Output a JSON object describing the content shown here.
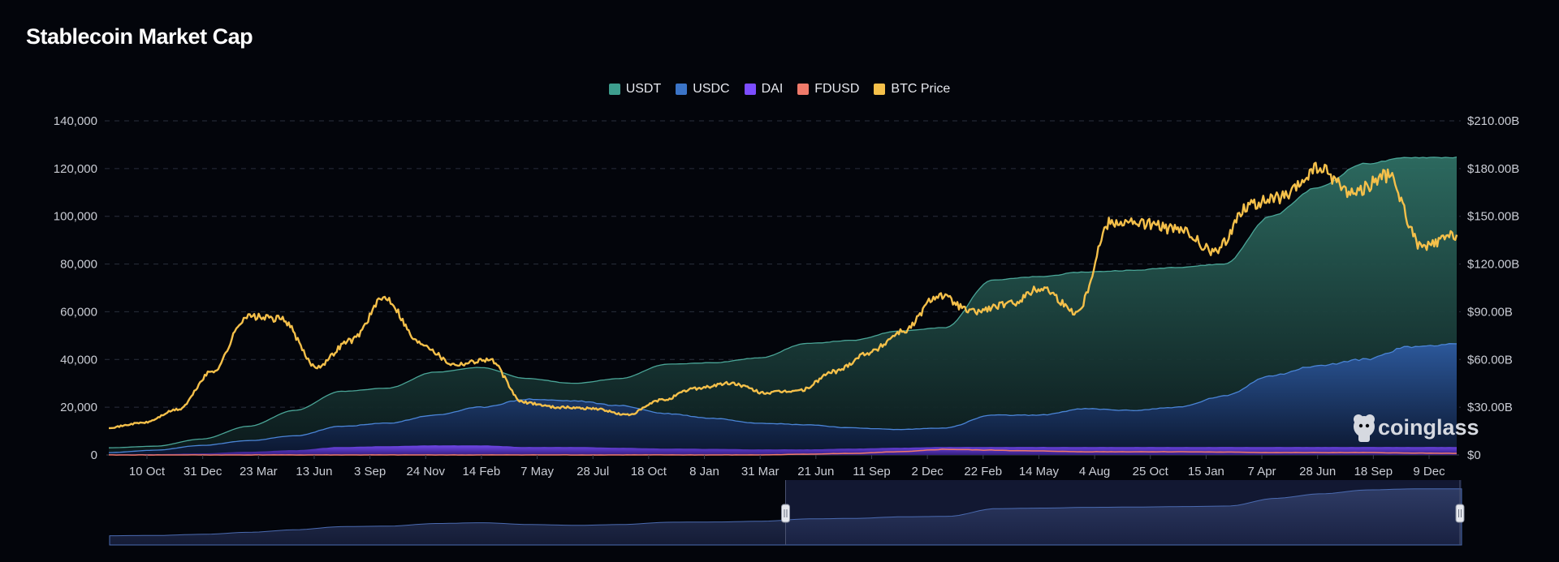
{
  "chart_data": {
    "type": "area",
    "title": "Stablecoin Market Cap",
    "x_ticks": [
      "10 Oct",
      "31 Dec",
      "23 Mar",
      "13 Jun",
      "3 Sep",
      "24 Nov",
      "14 Feb",
      "7 May",
      "28 Jul",
      "18 Oct",
      "8 Jan",
      "31 Mar",
      "21 Jun",
      "11 Sep",
      "2 Dec",
      "22 Feb",
      "14 May",
      "4 Aug",
      "25 Oct",
      "15 Jan",
      "7 Apr",
      "28 Jun",
      "18 Sep",
      "9 Dec"
    ],
    "y_left": {
      "ticks": [
        "0",
        "20,000",
        "40,000",
        "60,000",
        "80,000",
        "100,000",
        "120,000",
        "140,000"
      ],
      "values": [
        0,
        20000,
        40000,
        60000,
        80000,
        100000,
        120000,
        140000
      ],
      "range": [
        0,
        140000
      ]
    },
    "y_right": {
      "ticks": [
        "$0",
        "$30.00B",
        "$60.00B",
        "$90.00B",
        "$120.00B",
        "$150.00B",
        "$180.00B",
        "$210.00B"
      ],
      "values": [
        0,
        30,
        60,
        90,
        120,
        150,
        180,
        210
      ],
      "range": [
        0,
        210
      ],
      "unit": "B"
    },
    "grid": true,
    "legend_position": "top-center",
    "series": [
      {
        "name": "USDT",
        "color": "#3d9e8e",
        "axis": "right",
        "values": [
          4.5,
          5.5,
          10,
          18,
          28,
          40,
          42,
          52,
          55,
          48,
          45,
          48,
          57,
          58,
          61,
          70,
          72,
          78,
          80,
          110,
          112,
          115,
          116,
          118,
          120,
          150,
          168,
          183,
          187,
          187
        ]
      },
      {
        "name": "USDC",
        "color": "#3b74c7",
        "axis": "right",
        "values": [
          1.5,
          3,
          6,
          9,
          12,
          18,
          20,
          25,
          30,
          35,
          34,
          31,
          26,
          23,
          20,
          19,
          17,
          16,
          17,
          25,
          25,
          29,
          28,
          30,
          37,
          50,
          56,
          60,
          68,
          70
        ]
      },
      {
        "name": "DAI",
        "color": "#7c4dff",
        "axis": "right",
        "values": [
          0.3,
          0.5,
          1,
          2,
          3,
          5,
          5.5,
          6,
          6,
          5,
          5,
          4.5,
          4,
          3.8,
          3.5,
          3.5,
          4,
          4.5,
          5,
          5,
          5,
          5,
          5,
          5,
          5,
          5,
          5,
          5,
          5,
          5
        ]
      },
      {
        "name": "FDUSD",
        "color": "#f07a6a",
        "axis": "right",
        "values": [
          0,
          0,
          0,
          0,
          0,
          0,
          0,
          0,
          0,
          0,
          0,
          0,
          0,
          0,
          0,
          0.5,
          1,
          2,
          3.5,
          3,
          2.5,
          2,
          2,
          2,
          1.8,
          1.5,
          1.5,
          1.5,
          1.2,
          1
        ]
      },
      {
        "name": "BTC Price",
        "color": "#f5c04a",
        "axis": "left",
        "values": [
          11500,
          13500,
          19000,
          35000,
          58000,
          57000,
          37000,
          48000,
          66000,
          47000,
          38000,
          40000,
          22000,
          20000,
          19500,
          16800,
          23000,
          28000,
          30000,
          26000,
          27000,
          35000,
          43000,
          52000,
          67000,
          60000,
          63000,
          70000,
          60000,
          98000,
          97000,
          94000,
          85000,
          105000,
          108000,
          120000,
          110000,
          117000,
          87000,
          92000
        ]
      }
    ]
  },
  "branding": {
    "watermark": "coinglass"
  },
  "navigator": {
    "handle_left_value": 0.5,
    "handle_right_value": 1.0
  }
}
